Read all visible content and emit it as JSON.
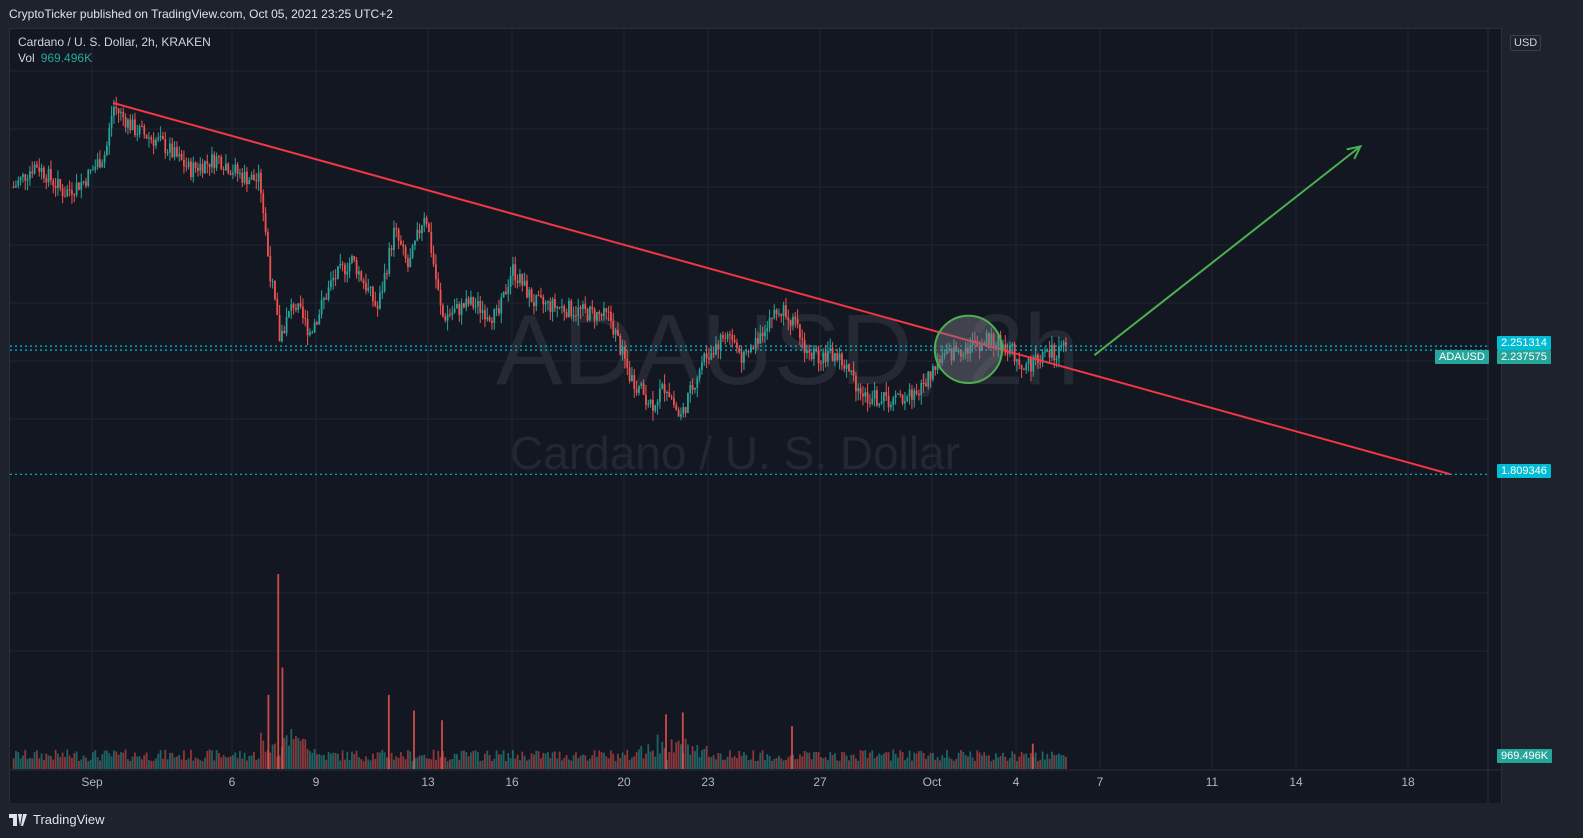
{
  "header": {
    "published_text": "CryptoTicker published on TradingView.com, Oct 05, 2021 23:25 UTC+2"
  },
  "legend": {
    "symbol_line": "Cardano / U. S. Dollar, 2h, KRAKEN",
    "vol_label": "Vol",
    "vol_value": "969.496K"
  },
  "watermark": {
    "symbol": "ADAUSD, 2h",
    "name": "Cardano / U. S. Dollar"
  },
  "currency_label": "USD",
  "footer": {
    "brand": "TradingView"
  },
  "colors": {
    "bg": "#131722",
    "up": "#26a69a",
    "down": "#ef5350",
    "trendline": "#f23645",
    "arrow": "#4caf50",
    "level": "#00bcd4",
    "grid": "#1f2430"
  },
  "chart_data": {
    "type": "candlestick",
    "symbol": "ADAUSD",
    "interval": "2h",
    "exchange": "KRAKEN",
    "x_ticks": [
      "Sep",
      "6",
      "9",
      "13",
      "16",
      "20",
      "23",
      "27",
      "Oct",
      "4",
      "7",
      "11",
      "14",
      "18"
    ],
    "x_tick_days": [
      1,
      6,
      9,
      13,
      16,
      20,
      23,
      27,
      31,
      34,
      37,
      41,
      44,
      48
    ],
    "y_ticks": [
      "3.600000",
      "3.400000",
      "3.200000",
      "3.000000",
      "2.800000",
      "2.600000",
      "2.400000",
      "2.200000",
      "2.000000",
      "1.600000",
      "1.400000",
      "1.200000"
    ],
    "y_range": [
      1.1,
      3.65
    ],
    "grid": true,
    "price_path": [
      {
        "day": -1.8,
        "price": 2.8
      },
      {
        "day": -1.0,
        "price": 2.88
      },
      {
        "day": 0.0,
        "price": 2.78
      },
      {
        "day": 0.7,
        "price": 2.82
      },
      {
        "day": 1.5,
        "price": 2.92
      },
      {
        "day": 1.75,
        "price": 3.08
      },
      {
        "day": 2.5,
        "price": 3.0
      },
      {
        "day": 3.5,
        "price": 2.95
      },
      {
        "day": 4.5,
        "price": 2.86
      },
      {
        "day": 5.5,
        "price": 2.9
      },
      {
        "day": 6.3,
        "price": 2.84
      },
      {
        "day": 7.0,
        "price": 2.82
      },
      {
        "day": 7.3,
        "price": 2.55
      },
      {
        "day": 7.7,
        "price": 2.28
      },
      {
        "day": 8.2,
        "price": 2.4
      },
      {
        "day": 8.8,
        "price": 2.3
      },
      {
        "day": 9.6,
        "price": 2.48
      },
      {
        "day": 10.3,
        "price": 2.55
      },
      {
        "day": 11.2,
        "price": 2.38
      },
      {
        "day": 11.8,
        "price": 2.65
      },
      {
        "day": 12.3,
        "price": 2.52
      },
      {
        "day": 12.9,
        "price": 2.72
      },
      {
        "day": 13.5,
        "price": 2.35
      },
      {
        "day": 14.5,
        "price": 2.4
      },
      {
        "day": 15.5,
        "price": 2.35
      },
      {
        "day": 16.0,
        "price": 2.52
      },
      {
        "day": 16.8,
        "price": 2.4
      },
      {
        "day": 18.0,
        "price": 2.38
      },
      {
        "day": 19.5,
        "price": 2.35
      },
      {
        "day": 20.2,
        "price": 2.15
      },
      {
        "day": 21.0,
        "price": 2.05
      },
      {
        "day": 21.5,
        "price": 2.12
      },
      {
        "day": 22.0,
        "price": 2.0
      },
      {
        "day": 22.8,
        "price": 2.2
      },
      {
        "day": 23.7,
        "price": 2.3
      },
      {
        "day": 24.3,
        "price": 2.2
      },
      {
        "day": 25.2,
        "price": 2.35
      },
      {
        "day": 25.8,
        "price": 2.38
      },
      {
        "day": 26.6,
        "price": 2.22
      },
      {
        "day": 27.6,
        "price": 2.22
      },
      {
        "day": 28.6,
        "price": 2.08
      },
      {
        "day": 29.6,
        "price": 2.06
      },
      {
        "day": 30.6,
        "price": 2.1
      },
      {
        "day": 31.2,
        "price": 2.2
      },
      {
        "day": 32.0,
        "price": 2.24
      },
      {
        "day": 33.0,
        "price": 2.27
      },
      {
        "day": 33.7,
        "price": 2.25
      },
      {
        "day": 34.3,
        "price": 2.18
      },
      {
        "day": 35.0,
        "price": 2.22
      },
      {
        "day": 35.8,
        "price": 2.24
      }
    ],
    "volume_spikes": [
      {
        "day": 7.65,
        "volume": 1.0
      },
      {
        "day": 7.8,
        "volume": 0.52
      },
      {
        "day": 7.3,
        "volume": 0.38
      },
      {
        "day": 11.6,
        "volume": 0.38
      },
      {
        "day": 12.5,
        "volume": 0.3
      },
      {
        "day": 13.5,
        "volume": 0.25
      },
      {
        "day": 21.5,
        "volume": 0.28
      },
      {
        "day": 22.1,
        "volume": 0.29
      },
      {
        "day": 26.0,
        "volume": 0.22
      },
      {
        "day": 34.6,
        "volume": 0.13
      }
    ],
    "last_volume": "969.496K",
    "price_labels": [
      {
        "value": 2.251314,
        "text": "2.251314",
        "kind": "level"
      },
      {
        "value": 2.237575,
        "text": "2.237575",
        "kind": "last",
        "symbol": "ADAUSD"
      },
      {
        "value": 1.809346,
        "text": "1.809346",
        "kind": "level"
      }
    ],
    "horizontal_levels": [
      2.251314,
      2.237575,
      1.809346
    ],
    "trendline": {
      "from": {
        "day": 1.75,
        "price": 3.09
      },
      "to": {
        "day": 49.5,
        "price": 1.81
      }
    },
    "arrow": {
      "from": {
        "day": 36.8,
        "price": 2.22
      },
      "to": {
        "day": 46.3,
        "price": 2.94
      }
    },
    "circle": {
      "center": {
        "day": 32.3,
        "price": 2.24
      },
      "radius_days": 1.2
    }
  }
}
